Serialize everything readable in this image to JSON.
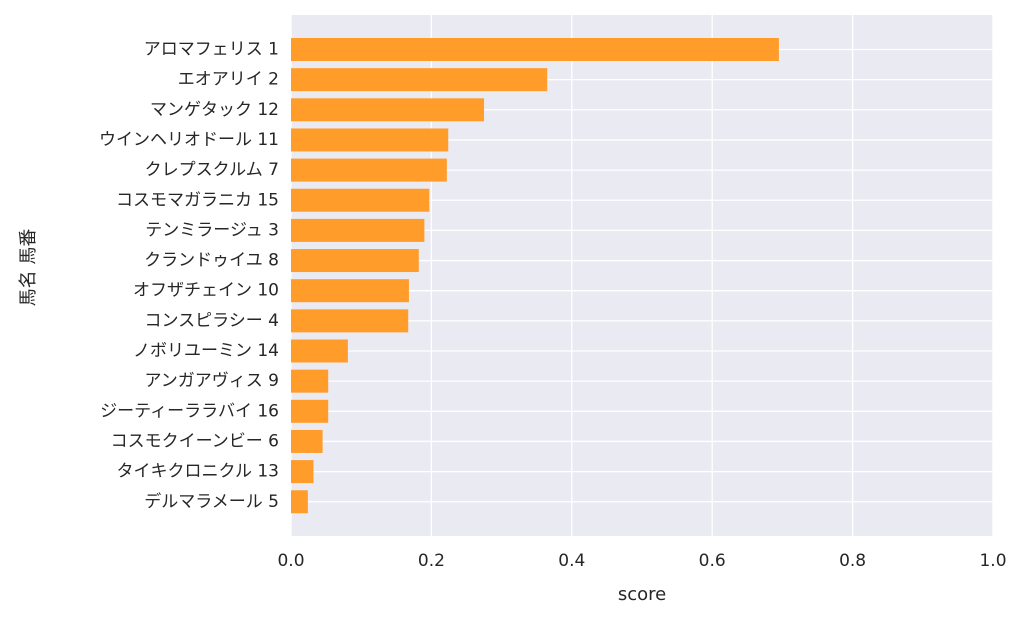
{
  "chart_data": {
    "type": "bar",
    "orientation": "horizontal",
    "xlabel": "score",
    "ylabel": "馬名 馬番",
    "xlim": [
      0,
      1.0
    ],
    "xticks": [
      "0.0",
      "0.2",
      "0.4",
      "0.6",
      "0.8",
      "1.0"
    ],
    "grid": true,
    "bar_color": "#FF9C2A",
    "background_color": "#EAEAF2",
    "grid_color": "#FFFFFF",
    "categories": [
      "アロマフェリス 1",
      "エオアリイ 2",
      "マンゲタック 12",
      "ウインヘリオドール 11",
      "クレプスクルム 7",
      "コスモマガラニカ 15",
      "テンミラージュ 3",
      "クランドゥイユ 8",
      "オフザチェイン 10",
      "コンスピラシー 4",
      "ノボリユーミン 14",
      "アンガアヴィス 9",
      "ジーティーララバイ 16",
      "コスモクイーンビー 6",
      "タイキクロニクル 13",
      "デルマラメール 5"
    ],
    "values": [
      0.695,
      0.365,
      0.275,
      0.224,
      0.222,
      0.197,
      0.19,
      0.182,
      0.168,
      0.167,
      0.081,
      0.053,
      0.053,
      0.045,
      0.032,
      0.024
    ]
  }
}
